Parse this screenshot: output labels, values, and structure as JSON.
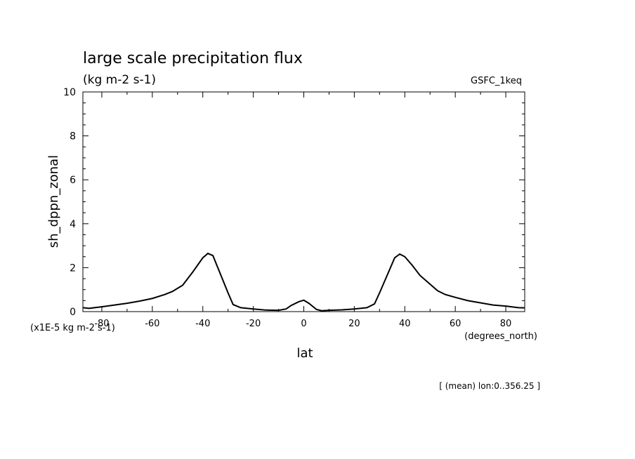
{
  "chart_data": {
    "type": "line",
    "title": "large scale precipitation flux",
    "units": "(kg m-2 s-1)",
    "model_label": "GSFC_1keq",
    "xlabel": "lat",
    "x_units": "(degrees_north)",
    "ylabel": "sh_dppn_zonal",
    "y_scale_note": "(x1E-5 kg m-2 s-1)",
    "footer_note": "[ (mean) lon:0..356.25 ]",
    "xlim": [
      -87.5,
      87.5
    ],
    "ylim": [
      0,
      10
    ],
    "x_ticks": [
      -80,
      -60,
      -40,
      -20,
      0,
      20,
      40,
      60,
      80
    ],
    "x_tick_labels": [
      "-80",
      "-60",
      "-40",
      "-20",
      "0",
      "20",
      "40",
      "60",
      "80"
    ],
    "y_ticks": [
      0,
      2,
      4,
      6,
      8,
      10
    ],
    "y_tick_labels": [
      "0",
      "2",
      "4",
      "6",
      "8",
      "10"
    ],
    "grid": false,
    "series": [
      {
        "x": [
          -87.5,
          -85,
          -80,
          -75,
          -70,
          -65,
          -60,
          -55,
          -52,
          -48,
          -44,
          -40,
          -38,
          -36,
          -33,
          -30,
          -28,
          -25,
          -20,
          -15,
          -10,
          -7,
          -5,
          -2,
          0,
          2,
          5,
          7,
          10,
          15,
          20,
          25,
          28,
          30,
          33,
          36,
          38,
          40,
          43,
          46,
          50,
          53,
          56,
          60,
          65,
          70,
          75,
          80,
          85,
          87.5
        ],
        "y": [
          0.18,
          0.15,
          0.22,
          0.3,
          0.38,
          0.48,
          0.6,
          0.78,
          0.92,
          1.2,
          1.8,
          2.45,
          2.65,
          2.55,
          1.7,
          0.85,
          0.32,
          0.18,
          0.12,
          0.07,
          0.06,
          0.12,
          0.28,
          0.45,
          0.52,
          0.38,
          0.1,
          0.04,
          0.06,
          0.08,
          0.12,
          0.18,
          0.35,
          0.85,
          1.65,
          2.45,
          2.62,
          2.5,
          2.1,
          1.65,
          1.25,
          0.95,
          0.78,
          0.65,
          0.5,
          0.4,
          0.3,
          0.25,
          0.18,
          0.17
        ]
      }
    ]
  }
}
